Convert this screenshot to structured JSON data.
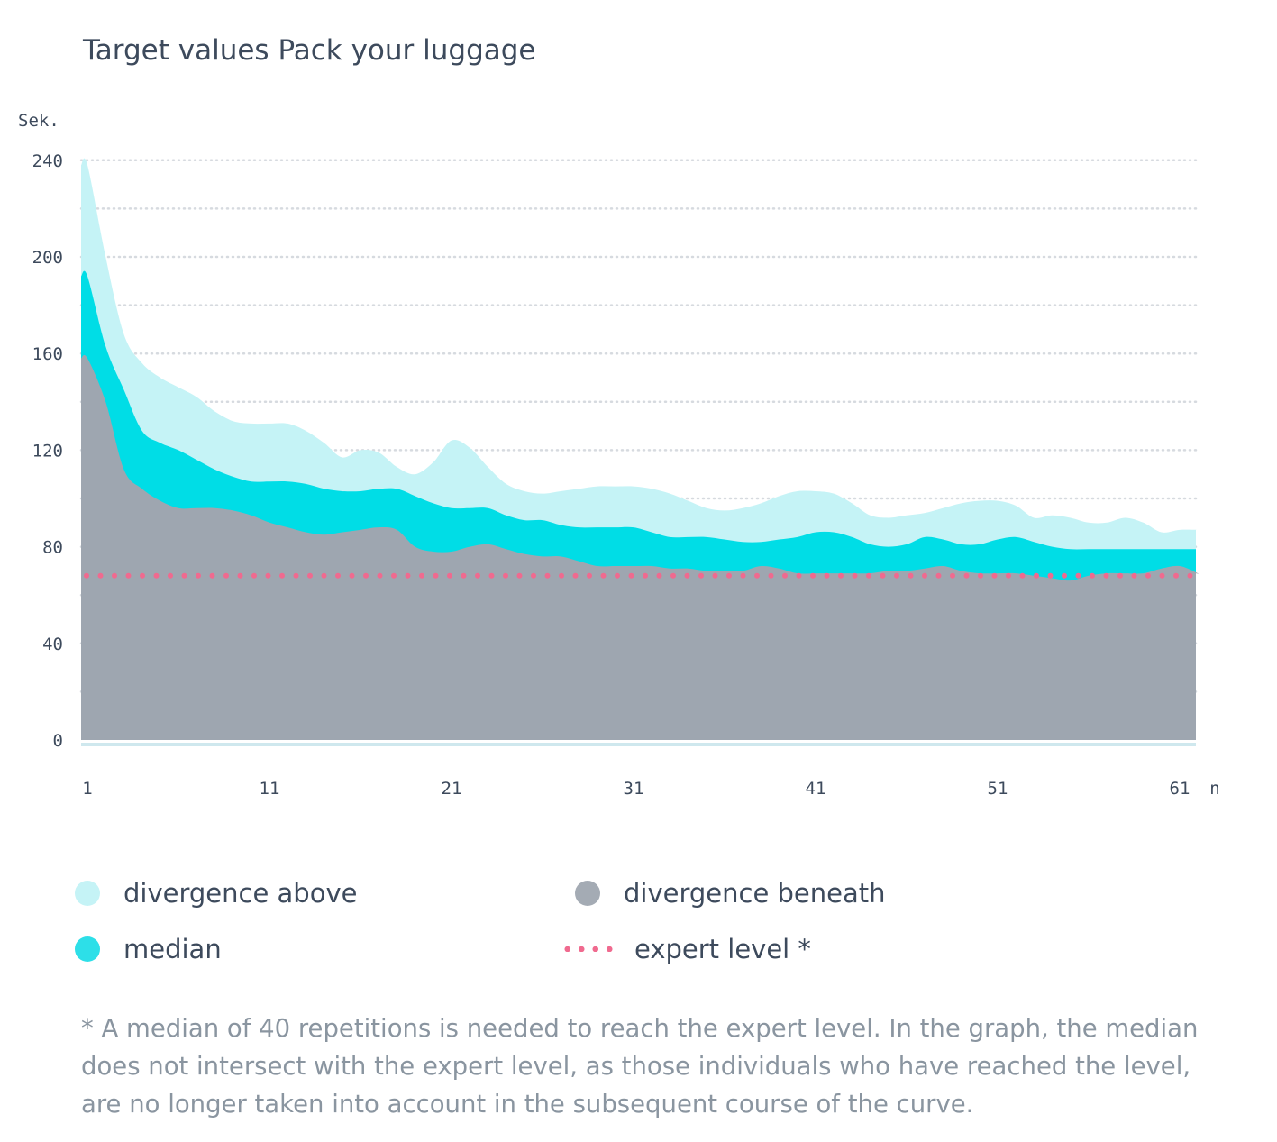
{
  "title": "Target values Pack your luggage",
  "chart_data": {
    "type": "area",
    "title": "Target values Pack your luggage",
    "ylabel": "Sek.",
    "xlabel": "n",
    "ylim": [
      0,
      240
    ],
    "yticks": [
      0,
      40,
      80,
      120,
      160,
      200,
      240
    ],
    "xticks": [
      1,
      11,
      21,
      31,
      41,
      51,
      61
    ],
    "grid": true,
    "legend_position": "bottom",
    "x_start": 1,
    "series": [
      {
        "name": "divergence above",
        "color": "#c5f3f6",
        "values": [
          238,
          200,
          168,
          156,
          150,
          146,
          142,
          136,
          132,
          131,
          131,
          131,
          128,
          123,
          117,
          120,
          119,
          113,
          110,
          115,
          124,
          121,
          113,
          106,
          103,
          102,
          103,
          104,
          105,
          105,
          105,
          104,
          102,
          99,
          96,
          95,
          96,
          98,
          101,
          103,
          103,
          102,
          98,
          93,
          92,
          93,
          94,
          96,
          98,
          99,
          99,
          97,
          92,
          93,
          92,
          90,
          90,
          92,
          90,
          86,
          87,
          87
        ]
      },
      {
        "name": "median",
        "color": "#00dde6",
        "values": [
          192,
          163,
          145,
          128,
          123,
          120,
          116,
          112,
          109,
          107,
          107,
          107,
          106,
          104,
          103,
          103,
          104,
          104,
          101,
          98,
          96,
          96,
          96,
          93,
          91,
          91,
          89,
          88,
          88,
          88,
          88,
          86,
          84,
          84,
          84,
          83,
          82,
          82,
          83,
          84,
          86,
          86,
          84,
          81,
          80,
          81,
          84,
          83,
          81,
          81,
          83,
          84,
          82,
          80,
          79,
          79,
          79,
          79,
          79,
          79,
          79,
          79
        ]
      },
      {
        "name": "divergence beneath",
        "color": "#9ea6b0",
        "values": [
          158,
          140,
          112,
          104,
          99,
          96,
          96,
          96,
          95,
          93,
          90,
          88,
          86,
          85,
          86,
          87,
          88,
          87,
          80,
          78,
          78,
          80,
          81,
          79,
          77,
          76,
          76,
          74,
          72,
          72,
          72,
          72,
          71,
          71,
          70,
          70,
          70,
          72,
          71,
          69,
          69,
          69,
          69,
          69,
          70,
          70,
          71,
          72,
          70,
          69,
          69,
          69,
          68,
          67,
          66,
          68,
          69,
          69,
          69,
          71,
          72,
          69
        ]
      },
      {
        "name": "expert level *",
        "color": "#f06a8f",
        "constant": 68
      }
    ]
  },
  "legend": [
    {
      "label": "divergence above",
      "color": "#c5f3f6"
    },
    {
      "label": "median",
      "color": "#00dde6"
    },
    {
      "label": "divergence beneath",
      "color": "#9ea6b0"
    },
    {
      "label": "expert level *",
      "color": "#f06a8f"
    }
  ],
  "footnote": "* A median of 40 repetitions is needed to reach the expert level. In the graph, the median does not intersect with the expert level, as those individuals who have reached the level, are no longer taken into account in the subsequent course of the curve."
}
